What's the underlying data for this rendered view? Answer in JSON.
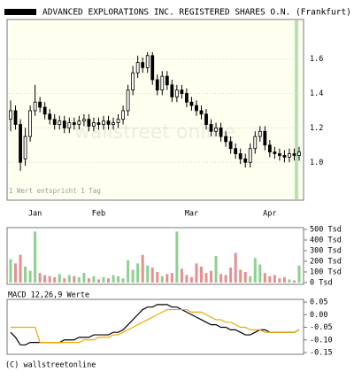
{
  "chart_data": [
    {
      "type": "candlestick",
      "title": "ADVANCED EXPLORATIONS INC. REGISTERED SHARES O.N. (Frankfurt)",
      "annotation": "1 Wert entspricht 1 Tag",
      "watermark": "wallstreet online",
      "categories": [
        null,
        null,
        null,
        null,
        null,
        "Jan",
        null,
        null,
        null,
        null,
        null,
        null,
        null,
        null,
        null,
        null,
        null,
        null,
        "Feb",
        null,
        null,
        null,
        null,
        null,
        null,
        null,
        null,
        null,
        null,
        null,
        null,
        null,
        null,
        null,
        null,
        null,
        null,
        "Mar",
        null,
        null,
        null,
        null,
        null,
        null,
        null,
        null,
        null,
        null,
        null,
        null,
        null,
        null,
        null,
        "Apr",
        null,
        null,
        null,
        null,
        null,
        null
      ],
      "open": [
        1.25,
        1.3,
        1.22,
        1.02,
        1.15,
        1.3,
        1.35,
        1.32,
        1.28,
        1.25,
        1.22,
        1.24,
        1.2,
        1.23,
        1.22,
        1.24,
        1.25,
        1.21,
        1.23,
        1.22,
        1.24,
        1.22,
        1.23,
        1.25,
        1.3,
        1.42,
        1.52,
        1.58,
        1.55,
        1.62,
        1.48,
        1.42,
        1.5,
        1.45,
        1.38,
        1.42,
        1.4,
        1.35,
        1.33,
        1.3,
        1.28,
        1.22,
        1.18,
        1.2,
        1.15,
        1.12,
        1.08,
        1.05,
        1.02,
        1.0,
        1.08,
        1.15,
        1.18,
        1.1,
        1.06,
        1.05,
        1.04,
        1.03,
        1.05,
        1.04
      ],
      "high": [
        1.36,
        1.33,
        1.25,
        1.2,
        1.33,
        1.45,
        1.38,
        1.35,
        1.31,
        1.28,
        1.27,
        1.27,
        1.26,
        1.26,
        1.27,
        1.28,
        1.28,
        1.26,
        1.26,
        1.27,
        1.27,
        1.26,
        1.28,
        1.33,
        1.45,
        1.56,
        1.62,
        1.61,
        1.64,
        1.64,
        1.51,
        1.53,
        1.53,
        1.48,
        1.45,
        1.45,
        1.43,
        1.38,
        1.36,
        1.33,
        1.31,
        1.25,
        1.23,
        1.23,
        1.18,
        1.15,
        1.11,
        1.08,
        1.05,
        1.11,
        1.18,
        1.21,
        1.21,
        1.13,
        1.09,
        1.08,
        1.07,
        1.08,
        1.08,
        1.09
      ],
      "low": [
        1.18,
        1.19,
        0.95,
        0.98,
        1.12,
        1.27,
        1.29,
        1.25,
        1.22,
        1.19,
        1.19,
        1.17,
        1.17,
        1.19,
        1.19,
        1.21,
        1.18,
        1.18,
        1.19,
        1.19,
        1.19,
        1.19,
        1.2,
        1.22,
        1.27,
        1.39,
        1.49,
        1.52,
        1.52,
        1.45,
        1.39,
        1.39,
        1.42,
        1.35,
        1.35,
        1.37,
        1.32,
        1.3,
        1.27,
        1.25,
        1.19,
        1.15,
        1.15,
        1.12,
        1.09,
        1.05,
        1.02,
        0.99,
        0.97,
        0.97,
        1.05,
        1.12,
        1.07,
        1.03,
        1.02,
        1.01,
        1.0,
        1.0,
        1.01,
        1.01
      ],
      "close": [
        1.3,
        1.22,
        1.0,
        1.15,
        1.3,
        1.35,
        1.32,
        1.28,
        1.25,
        1.22,
        1.24,
        1.2,
        1.23,
        1.22,
        1.24,
        1.25,
        1.21,
        1.23,
        1.22,
        1.24,
        1.22,
        1.23,
        1.25,
        1.3,
        1.42,
        1.52,
        1.58,
        1.55,
        1.62,
        1.48,
        1.42,
        1.5,
        1.45,
        1.38,
        1.42,
        1.4,
        1.35,
        1.33,
        1.3,
        1.28,
        1.22,
        1.18,
        1.2,
        1.15,
        1.12,
        1.08,
        1.05,
        1.02,
        1.0,
        1.08,
        1.15,
        1.18,
        1.1,
        1.06,
        1.05,
        1.04,
        1.03,
        1.05,
        1.04,
        1.06
      ],
      "up_color": "#ffffff",
      "down_color": "#000000",
      "ylim": [
        0.78,
        1.83
      ],
      "yticks": [
        {
          "value": 1,
          "label": "1.0"
        },
        1.2,
        1.4,
        1.6
      ],
      "grid": true
    },
    {
      "type": "bar",
      "values": [
        220,
        180,
        260,
        150,
        110,
        480,
        90,
        70,
        60,
        50,
        80,
        40,
        70,
        60,
        50,
        90,
        40,
        60,
        30,
        50,
        40,
        70,
        60,
        40,
        210,
        120,
        180,
        260,
        160,
        140,
        100,
        60,
        80,
        90,
        480,
        130,
        70,
        50,
        180,
        150,
        90,
        110,
        250,
        80,
        70,
        140,
        280,
        120,
        100,
        60,
        230,
        170,
        90,
        60,
        70,
        40,
        50,
        30,
        20,
        160
      ],
      "up_color": "#8fcf8f",
      "down_color": "#e49090",
      "ylim": [
        0,
        500
      ],
      "yticks": [
        {
          "value": 0,
          "label": "0 Tsd"
        },
        {
          "value": 100,
          "label": "100 Tsd"
        },
        {
          "value": 200,
          "label": "200 Tsd"
        },
        {
          "value": 300,
          "label": "300 Tsd"
        },
        {
          "value": 400,
          "label": "400 Tsd"
        },
        {
          "value": 500,
          "label": "500 Tsd"
        }
      ]
    },
    {
      "type": "line",
      "title": "MACD 12,26,9 Werte",
      "series": [
        {
          "color": "#000000",
          "values": [
            -0.07,
            -0.09,
            -0.12,
            -0.12,
            -0.11,
            -0.11,
            -0.11,
            -0.11,
            -0.11,
            -0.11,
            -0.11,
            -0.1,
            -0.1,
            -0.1,
            -0.09,
            -0.09,
            -0.09,
            -0.08,
            -0.08,
            -0.08,
            -0.08,
            -0.07,
            -0.07,
            -0.06,
            -0.04,
            -0.02,
            0.0,
            0.02,
            0.03,
            0.03,
            0.04,
            0.04,
            0.04,
            0.03,
            0.03,
            0.02,
            0.01,
            0.0,
            -0.01,
            -0.02,
            -0.03,
            -0.04,
            -0.04,
            -0.05,
            -0.05,
            -0.06,
            -0.06,
            -0.07,
            -0.08,
            -0.08,
            -0.07,
            -0.06,
            -0.06,
            -0.07,
            -0.07,
            -0.07,
            -0.07,
            -0.07,
            -0.07,
            -0.06
          ]
        },
        {
          "color": "#f0a800",
          "values": [
            -0.05,
            -0.05,
            -0.05,
            -0.05,
            -0.05,
            -0.05,
            -0.11,
            -0.11,
            -0.11,
            -0.11,
            -0.11,
            -0.11,
            -0.11,
            -0.11,
            -0.11,
            -0.1,
            -0.1,
            -0.1,
            -0.09,
            -0.09,
            -0.09,
            -0.08,
            -0.08,
            -0.07,
            -0.06,
            -0.05,
            -0.04,
            -0.03,
            -0.02,
            -0.01,
            0.0,
            0.01,
            0.02,
            0.02,
            0.02,
            0.02,
            0.02,
            0.01,
            0.01,
            0.01,
            0.0,
            -0.01,
            -0.02,
            -0.02,
            -0.03,
            -0.03,
            -0.04,
            -0.05,
            -0.05,
            -0.06,
            -0.06,
            -0.06,
            -0.07,
            -0.07,
            -0.07,
            -0.07,
            -0.07,
            -0.07,
            -0.07,
            -0.06
          ]
        }
      ],
      "ylim": [
        -0.15,
        0.05
      ],
      "yticks": [
        -0.15,
        {
          "value": -0.1,
          "label": "-0.10"
        },
        -0.05,
        {
          "value": 0,
          "label": "0.00"
        },
        0.05
      ]
    }
  ],
  "footer": "(C) wallstreetonline"
}
